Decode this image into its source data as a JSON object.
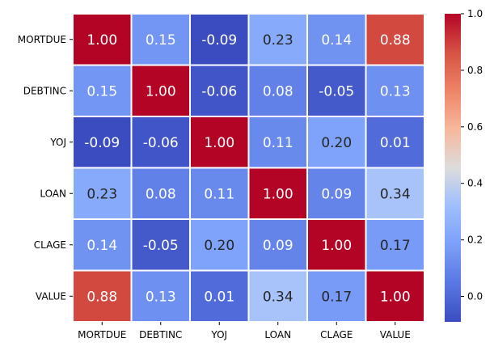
{
  "chart_data": {
    "type": "heatmap",
    "title": "",
    "xlabel": "",
    "ylabel": "",
    "x_labels": [
      "MORTDUE",
      "DEBTINC",
      "YOJ",
      "LOAN",
      "CLAGE",
      "VALUE"
    ],
    "y_labels": [
      "MORTDUE",
      "DEBTINC",
      "YOJ",
      "LOAN",
      "CLAGE",
      "VALUE"
    ],
    "values": [
      [
        1.0,
        0.15,
        -0.09,
        0.23,
        0.14,
        0.88
      ],
      [
        0.15,
        1.0,
        -0.06,
        0.08,
        -0.05,
        0.13
      ],
      [
        -0.09,
        -0.06,
        1.0,
        0.11,
        0.2,
        0.01
      ],
      [
        0.23,
        0.08,
        0.11,
        1.0,
        0.09,
        0.34
      ],
      [
        0.14,
        -0.05,
        0.2,
        0.09,
        1.0,
        0.17
      ],
      [
        0.88,
        0.13,
        0.01,
        0.34,
        0.17,
        1.0
      ]
    ],
    "value_format": "0.00",
    "colormap": "coolwarm",
    "colorbar": {
      "range": [
        -0.09,
        1.0
      ],
      "ticks": [
        0.0,
        0.2,
        0.4,
        0.6,
        0.8,
        1.0
      ],
      "tick_labels": [
        "0.0",
        "0.2",
        "0.4",
        "0.6",
        "0.8",
        "1.0"
      ]
    },
    "grid_line_color": "#ffffff"
  }
}
